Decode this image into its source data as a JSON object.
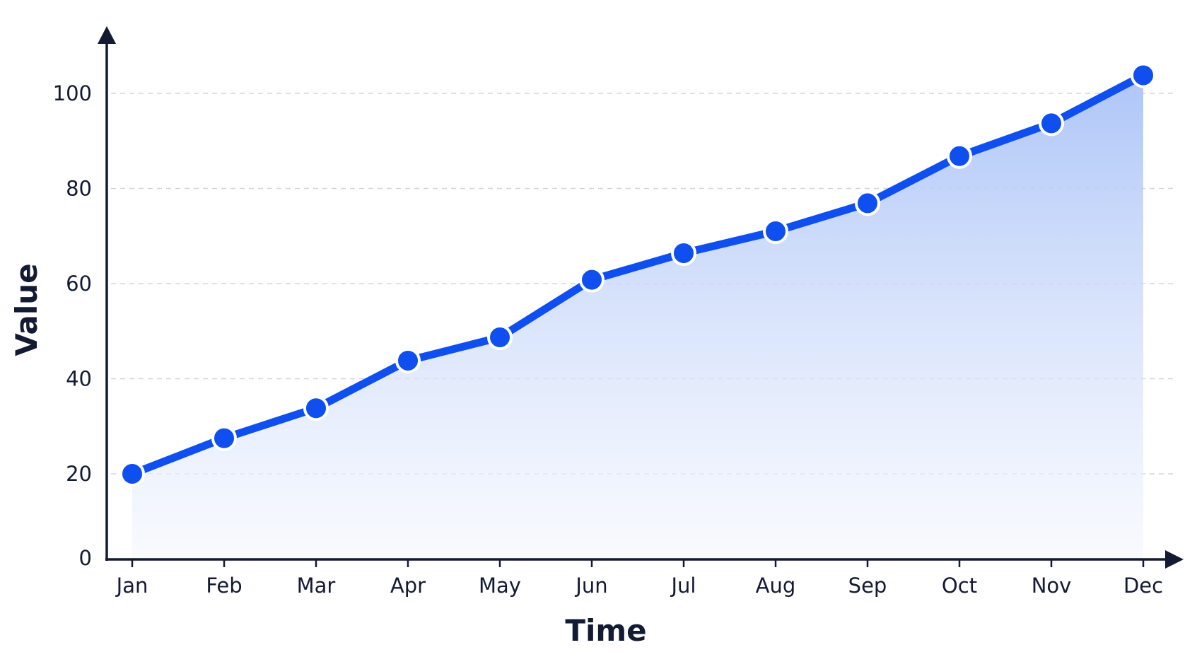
{
  "chart_data": {
    "type": "area",
    "title": "",
    "xlabel": "Time",
    "ylabel": "Value",
    "categories": [
      "Jan",
      "Feb",
      "Mar",
      "Apr",
      "May",
      "Jun",
      "Jul",
      "Aug",
      "Sep",
      "Oct",
      "Nov",
      "Dec"
    ],
    "series": [
      {
        "values": [
          20,
          27.5,
          33.8,
          43.8,
          48.7,
          60.8,
          66.4,
          71,
          76.9,
          86.8,
          93.7,
          103.8
        ]
      }
    ],
    "yticks": [
      0,
      20,
      40,
      60,
      80,
      100
    ],
    "ylim": [
      0,
      110
    ],
    "grid": true,
    "grid_style": "dashed horizontal",
    "legend": "none",
    "colors": {
      "line": "#0f4ff0",
      "fill_top": "#a9c2f7",
      "fill_bottom": "#f4f7fe",
      "marker": "#0f4ff0",
      "marker_edge": "#ffffff",
      "axis": "#131a33",
      "grid": "#d3d6dc",
      "text": "#131a33"
    }
  }
}
